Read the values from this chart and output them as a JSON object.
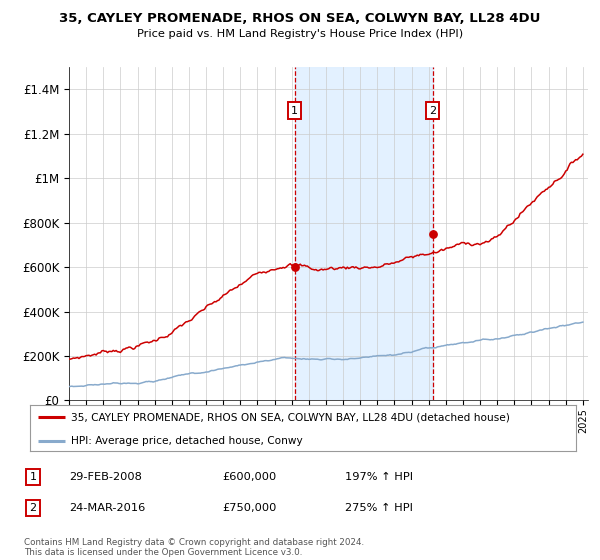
{
  "title1": "35, CAYLEY PROMENADE, RHOS ON SEA, COLWYN BAY, LL28 4DU",
  "title2": "Price paid vs. HM Land Registry's House Price Index (HPI)",
  "ylim": [
    0,
    1500000
  ],
  "yticks": [
    0,
    200000,
    400000,
    600000,
    800000,
    1000000,
    1200000,
    1400000
  ],
  "ytick_labels": [
    "£0",
    "£200K",
    "£400K",
    "£600K",
    "£800K",
    "£1M",
    "£1.2M",
    "£1.4M"
  ],
  "red_line_color": "#cc0000",
  "blue_line_color": "#88aacc",
  "marker1_x": 2008.167,
  "marker1_y": 600000,
  "marker2_x": 2016.23,
  "marker2_y": 750000,
  "legend_red": "35, CAYLEY PROMENADE, RHOS ON SEA, COLWYN BAY, LL28 4DU (detached house)",
  "legend_blue": "HPI: Average price, detached house, Conwy",
  "table_rows": [
    {
      "num": "1",
      "date": "29-FEB-2008",
      "price": "£600,000",
      "hpi": "197% ↑ HPI"
    },
    {
      "num": "2",
      "date": "24-MAR-2016",
      "price": "£750,000",
      "hpi": "275% ↑ HPI"
    }
  ],
  "footnote": "Contains HM Land Registry data © Crown copyright and database right 2024.\nThis data is licensed under the Open Government Licence v3.0.",
  "background_color": "#ffffff",
  "grid_color": "#cccccc",
  "shade_color": "#ddeeff",
  "xlim_left": 1995,
  "xlim_right": 2025.3
}
